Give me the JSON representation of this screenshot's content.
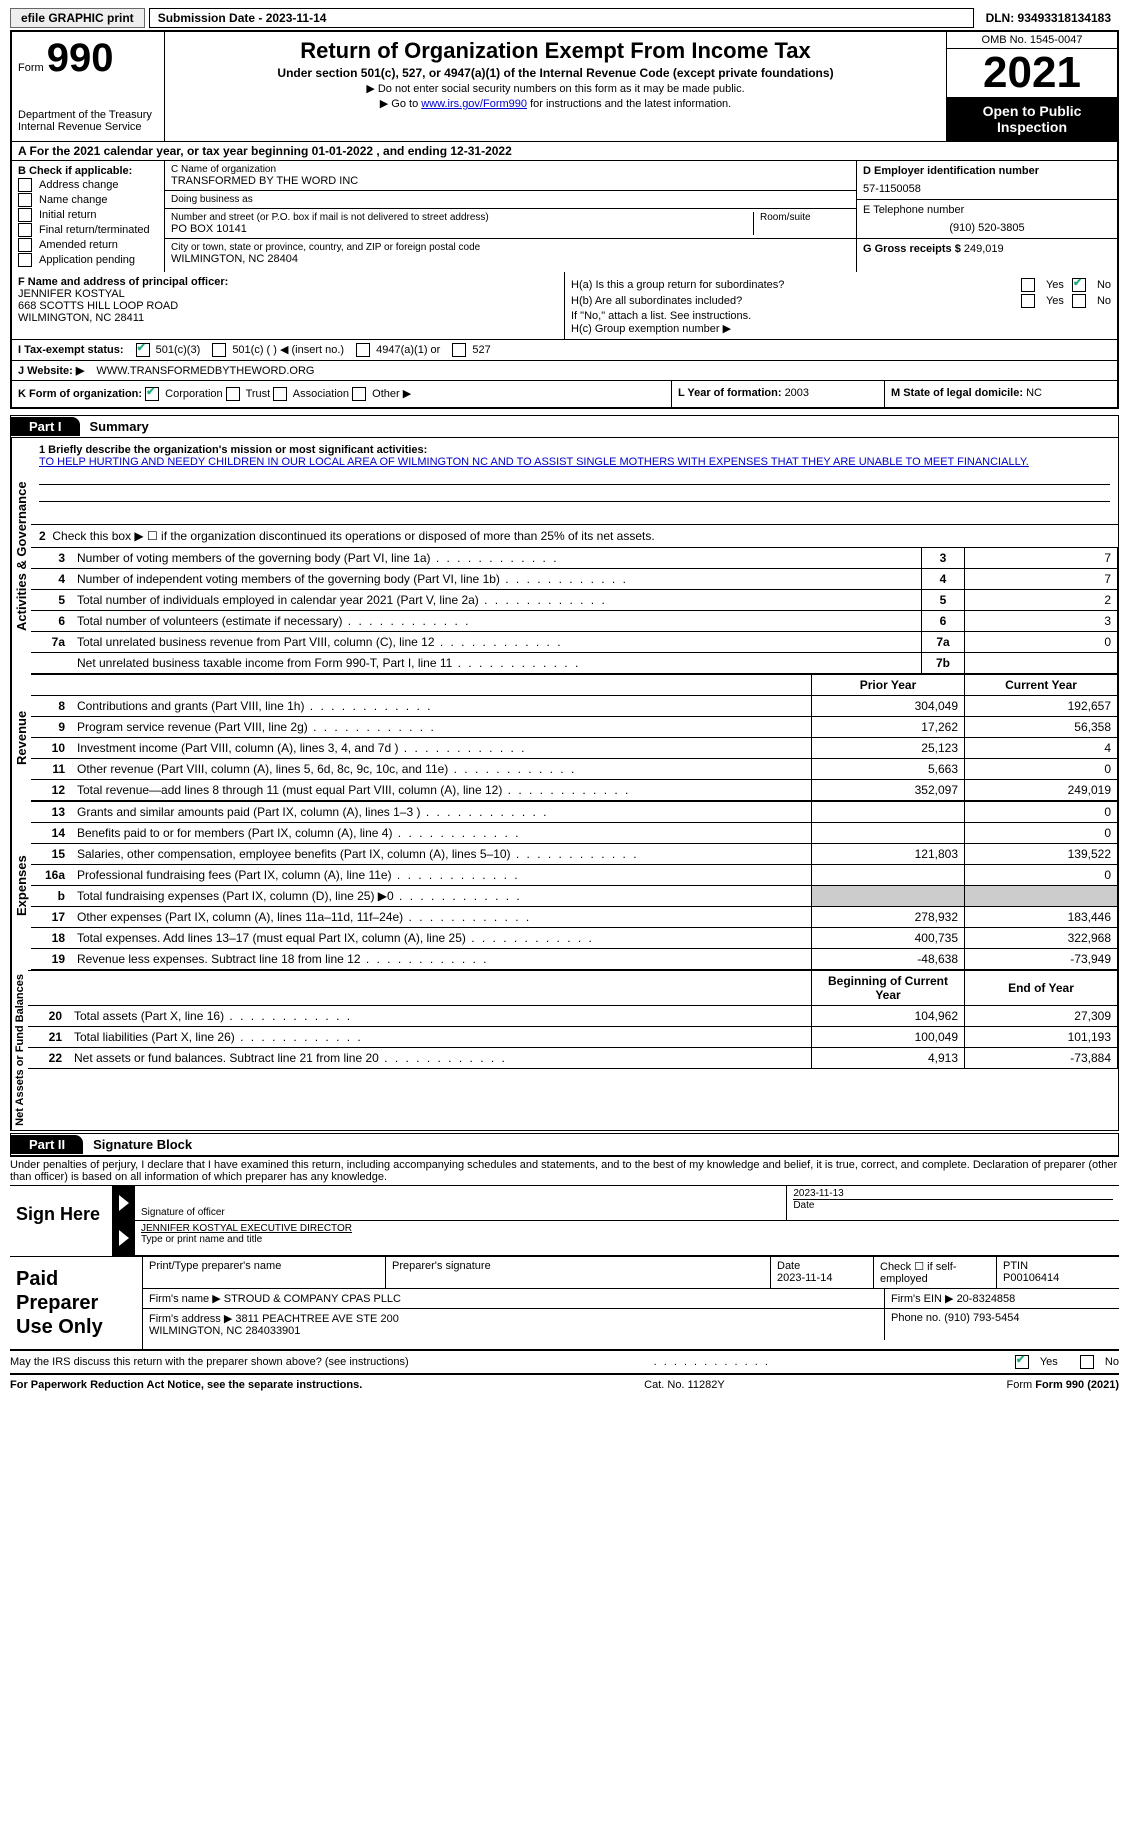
{
  "topbar": {
    "efile_label": "efile GRAPHIC print",
    "submission_label": "Submission Date - 2023-11-14",
    "dln_label": "DLN: 93493318134183"
  },
  "header": {
    "form_word": "Form",
    "form_number": "990",
    "dept": "Department of the Treasury\nInternal Revenue Service",
    "title": "Return of Organization Exempt From Income Tax",
    "subtitle": "Under section 501(c), 527, or 4947(a)(1) of the Internal Revenue Code (except private foundations)",
    "note1": "▶ Do not enter social security numbers on this form as it may be made public.",
    "note2_pre": "▶ Go to ",
    "note2_link": "www.irs.gov/Form990",
    "note2_post": " for instructions and the latest information.",
    "omb": "OMB No. 1545-0047",
    "year": "2021",
    "open_public": "Open to Public Inspection"
  },
  "period": {
    "text": "A For the 2021 calendar year, or tax year beginning 01-01-2022   , and ending 12-31-2022"
  },
  "block_b": {
    "label": "B Check if applicable:",
    "opts": [
      "Address change",
      "Name change",
      "Initial return",
      "Final return/terminated",
      "Amended return",
      "Application pending"
    ]
  },
  "block_c": {
    "name_label": "C Name of organization",
    "name": "TRANSFORMED BY THE WORD INC",
    "dba_label": "Doing business as",
    "dba": "",
    "street_label": "Number and street (or P.O. box if mail is not delivered to street address)",
    "room_label": "Room/suite",
    "street": "PO BOX 10141",
    "city_label": "City or town, state or province, country, and ZIP or foreign postal code",
    "city": "WILMINGTON, NC  28404"
  },
  "block_d": {
    "label": "D Employer identification number",
    "ein": "57-1150058",
    "phone_label": "E Telephone number",
    "phone": "(910) 520-3805",
    "gross_label": "G Gross receipts $ ",
    "gross": "249,019"
  },
  "block_f": {
    "label": "F  Name and address of principal officer:",
    "name": "JENNIFER KOSTYAL",
    "addr1": "668 SCOTTS HILL LOOP ROAD",
    "addr2": "WILMINGTON, NC  28411"
  },
  "block_h": {
    "ha": "H(a)  Is this a group return for subordinates?",
    "ha_yes": "Yes",
    "ha_no": "No",
    "hb": "H(b)  Are all subordinates included?",
    "hb_yes": "Yes",
    "hb_no": "No",
    "hb_note": "If \"No,\" attach a list. See instructions.",
    "hc": "H(c)  Group exemption number ▶"
  },
  "block_i": {
    "label": "I  Tax-exempt status:",
    "o1": "501(c)(3)",
    "o2": "501(c) (  ) ◀ (insert no.)",
    "o3": "4947(a)(1) or",
    "o4": "527"
  },
  "block_j": {
    "label": "J  Website: ▶",
    "url": "WWW.TRANSFORMEDBYTHEWORD.ORG"
  },
  "block_k": {
    "label": "K Form of organization:",
    "o1": "Corporation",
    "o2": "Trust",
    "o3": "Association",
    "o4": "Other ▶",
    "l_label": "L Year of formation: ",
    "l_val": "2003",
    "m_label": "M State of legal domicile: ",
    "m_val": "NC"
  },
  "part1": {
    "header": "Part I",
    "title": "Summary",
    "vert1": "Activities & Governance",
    "vert2": "Revenue",
    "vert3": "Expenses",
    "vert4": "Net Assets or Fund Balances",
    "line1_label": "1  Briefly describe the organization's mission or most significant activities:",
    "mission": "TO HELP HURTING AND NEEDY CHILDREN IN OUR LOCAL AREA OF WILMINGTON NC AND TO ASSIST SINGLE MOTHERS WITH EXPENSES THAT THEY ARE UNABLE TO MEET FINANCIALLY.",
    "line2": "Check this box ▶ ☐ if the organization discontinued its operations or disposed of more than 25% of its net assets.",
    "rows_ag": [
      {
        "n": "3",
        "d": "Number of voting members of the governing body (Part VI, line 1a)",
        "box": "3",
        "v": "7"
      },
      {
        "n": "4",
        "d": "Number of independent voting members of the governing body (Part VI, line 1b)",
        "box": "4",
        "v": "7"
      },
      {
        "n": "5",
        "d": "Total number of individuals employed in calendar year 2021 (Part V, line 2a)",
        "box": "5",
        "v": "2"
      },
      {
        "n": "6",
        "d": "Total number of volunteers (estimate if necessary)",
        "box": "6",
        "v": "3"
      },
      {
        "n": "7a",
        "d": "Total unrelated business revenue from Part VIII, column (C), line 12",
        "box": "7a",
        "v": "0"
      },
      {
        "n": "",
        "d": "Net unrelated business taxable income from Form 990-T, Part I, line 11",
        "box": "7b",
        "v": ""
      }
    ],
    "col_prior": "Prior Year",
    "col_current": "Current Year",
    "rows_rev": [
      {
        "n": "8",
        "d": "Contributions and grants (Part VIII, line 1h)",
        "p": "304,049",
        "c": "192,657"
      },
      {
        "n": "9",
        "d": "Program service revenue (Part VIII, line 2g)",
        "p": "17,262",
        "c": "56,358"
      },
      {
        "n": "10",
        "d": "Investment income (Part VIII, column (A), lines 3, 4, and 7d )",
        "p": "25,123",
        "c": "4"
      },
      {
        "n": "11",
        "d": "Other revenue (Part VIII, column (A), lines 5, 6d, 8c, 9c, 10c, and 11e)",
        "p": "5,663",
        "c": "0"
      },
      {
        "n": "12",
        "d": "Total revenue—add lines 8 through 11 (must equal Part VIII, column (A), line 12)",
        "p": "352,097",
        "c": "249,019"
      }
    ],
    "rows_exp": [
      {
        "n": "13",
        "d": "Grants and similar amounts paid (Part IX, column (A), lines 1–3 )",
        "p": "",
        "c": "0"
      },
      {
        "n": "14",
        "d": "Benefits paid to or for members (Part IX, column (A), line 4)",
        "p": "",
        "c": "0"
      },
      {
        "n": "15",
        "d": "Salaries, other compensation, employee benefits (Part IX, column (A), lines 5–10)",
        "p": "121,803",
        "c": "139,522"
      },
      {
        "n": "16a",
        "d": "Professional fundraising fees (Part IX, column (A), line 11e)",
        "p": "",
        "c": "0"
      },
      {
        "n": "b",
        "d": "Total fundraising expenses (Part IX, column (D), line 25) ▶0",
        "p": "__GREY__",
        "c": "__GREY__"
      },
      {
        "n": "17",
        "d": "Other expenses (Part IX, column (A), lines 11a–11d, 11f–24e)",
        "p": "278,932",
        "c": "183,446"
      },
      {
        "n": "18",
        "d": "Total expenses. Add lines 13–17 (must equal Part IX, column (A), line 25)",
        "p": "400,735",
        "c": "322,968"
      },
      {
        "n": "19",
        "d": "Revenue less expenses. Subtract line 18 from line 12",
        "p": "-48,638",
        "c": "-73,949"
      }
    ],
    "col_begin": "Beginning of Current Year",
    "col_end": "End of Year",
    "rows_net": [
      {
        "n": "20",
        "d": "Total assets (Part X, line 16)",
        "p": "104,962",
        "c": "27,309"
      },
      {
        "n": "21",
        "d": "Total liabilities (Part X, line 26)",
        "p": "100,049",
        "c": "101,193"
      },
      {
        "n": "22",
        "d": "Net assets or fund balances. Subtract line 21 from line 20",
        "p": "4,913",
        "c": "-73,884"
      }
    ]
  },
  "part2": {
    "header": "Part II",
    "title": "Signature Block",
    "declare": "Under penalties of perjury, I declare that I have examined this return, including accompanying schedules and statements, and to the best of my knowledge and belief, it is true, correct, and complete. Declaration of preparer (other than officer) is based on all information of which preparer has any knowledge.",
    "sign_here": "Sign Here",
    "sig_officer": "Signature of officer",
    "sig_date": "2023-11-13",
    "date_label": "Date",
    "name_title": "JENNIFER KOSTYAL  EXECUTIVE DIRECTOR",
    "name_title_label": "Type or print name and title",
    "paid_label": "Paid Preparer Use Only",
    "pp_name_label": "Print/Type preparer's name",
    "pp_sig_label": "Preparer's signature",
    "pp_date_label": "Date",
    "pp_date": "2023-11-14",
    "pp_check_label": "Check ☐ if self-employed",
    "ptin_label": "PTIN",
    "ptin": "P00106414",
    "firm_name_label": "Firm's name    ▶ ",
    "firm_name": "STROUD & COMPANY CPAS PLLC",
    "firm_ein_label": "Firm's EIN ▶ ",
    "firm_ein": "20-8324858",
    "firm_addr_label": "Firm's address ▶ ",
    "firm_addr": "3811 PEACHTREE AVE STE 200\nWILMINGTON, NC  284033901",
    "firm_phone_label": "Phone no. ",
    "firm_phone": "(910) 793-5454",
    "discuss": "May the IRS discuss this return with the preparer shown above? (see instructions)",
    "discuss_yes": "Yes",
    "discuss_no": "No"
  },
  "footer": {
    "pra": "For Paperwork Reduction Act Notice, see the separate instructions.",
    "cat": "Cat. No. 11282Y",
    "form": "Form 990 (2021)"
  }
}
